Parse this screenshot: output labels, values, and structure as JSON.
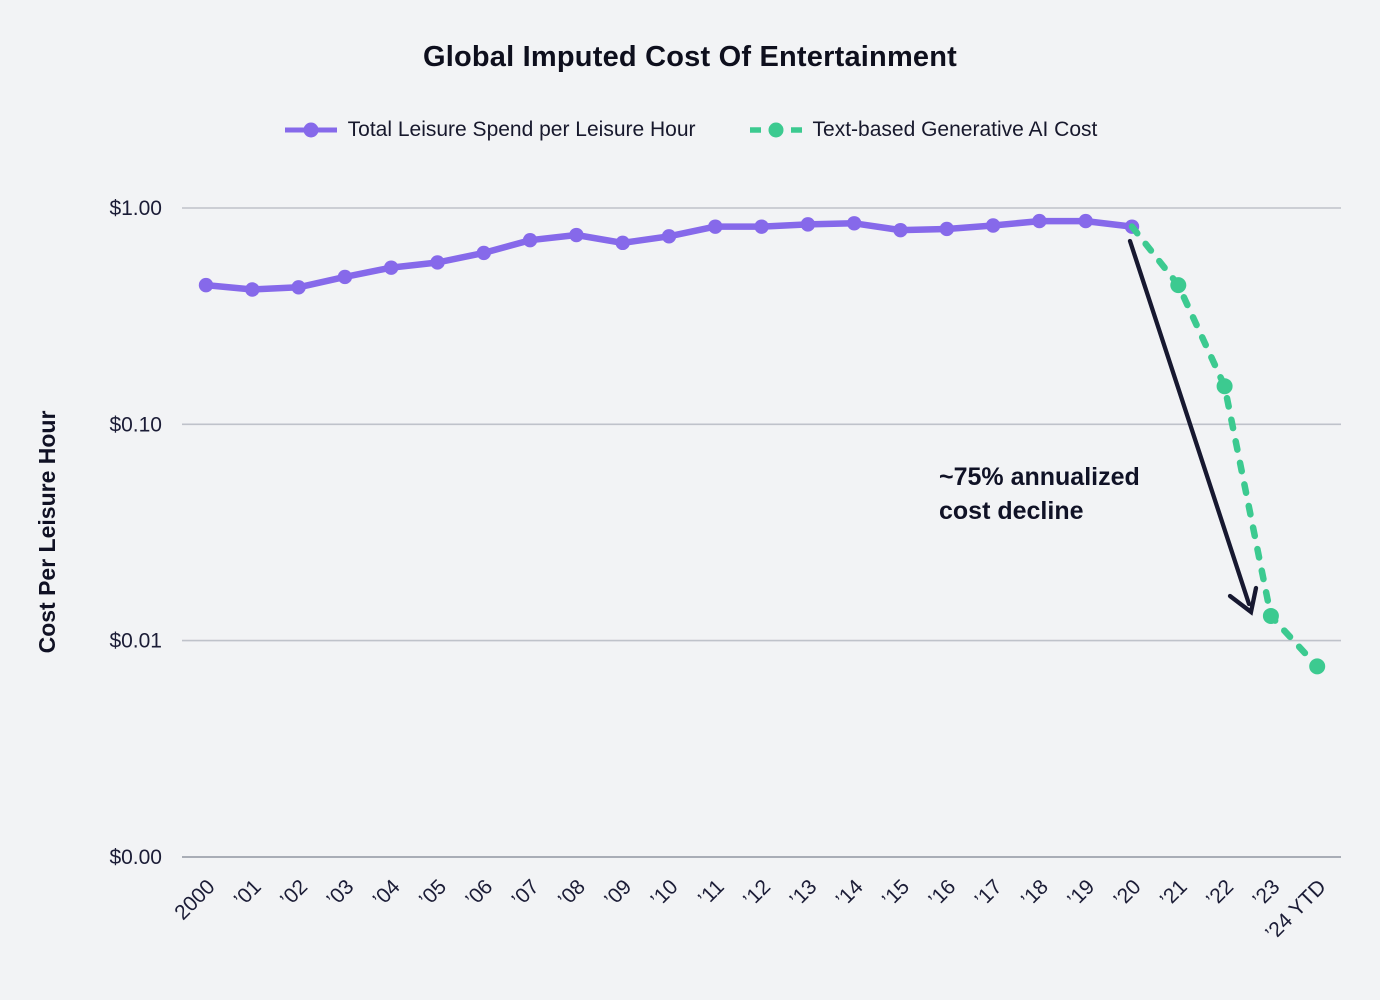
{
  "background": "#f2f3f5",
  "colors": {
    "leisure_purple": "#8669ea",
    "genai_green": "#3cca90",
    "grid": "#bfc2ca",
    "axis": "#a9adb6",
    "text_dark": "#1b1c36",
    "arrow": "#171830"
  },
  "annotation": {
    "line1": "~75% annualized",
    "line2": "cost decline"
  },
  "chart_data": {
    "type": "line",
    "title": "Global Imputed Cost Of Entertainment",
    "ylabel": "Cost Per Leisure Hour",
    "xlabel": "",
    "yscale": "log",
    "grid": "horizontal",
    "legend_position": "top",
    "yticks": [
      {
        "label": "$1.00",
        "value": 1.0
      },
      {
        "label": "$0.10",
        "value": 0.1
      },
      {
        "label": "$0.01",
        "value": 0.01
      },
      {
        "label": "$0.00",
        "value": null
      }
    ],
    "categories": [
      "2000",
      "’01",
      "’02",
      "’03",
      "’04",
      "’05",
      "’06",
      "’07",
      "’08",
      "’09",
      "’10",
      "’11",
      "’12",
      "’13",
      "’14",
      "’15",
      "’16",
      "’17",
      "’18",
      "’19",
      "’20",
      "’21",
      "’22",
      "’23",
      "’24 YTD"
    ],
    "series": [
      {
        "name": "Total Leisure Spend per Leisure Hour",
        "color": "#8669ea",
        "line_style": "solid",
        "values": [
          0.44,
          0.42,
          0.43,
          0.48,
          0.53,
          0.56,
          0.62,
          0.71,
          0.75,
          0.69,
          0.74,
          0.82,
          0.82,
          0.84,
          0.85,
          0.79,
          0.8,
          0.83,
          0.87,
          0.87,
          0.82,
          null,
          null,
          null,
          null
        ]
      },
      {
        "name": "Text-based Generative AI Cost",
        "color": "#3cca90",
        "line_style": "dashed",
        "values": [
          null,
          null,
          null,
          null,
          null,
          null,
          null,
          null,
          null,
          null,
          null,
          null,
          null,
          null,
          null,
          null,
          null,
          null,
          null,
          null,
          0.82,
          0.44,
          0.15,
          0.013,
          0.0076
        ]
      }
    ]
  }
}
